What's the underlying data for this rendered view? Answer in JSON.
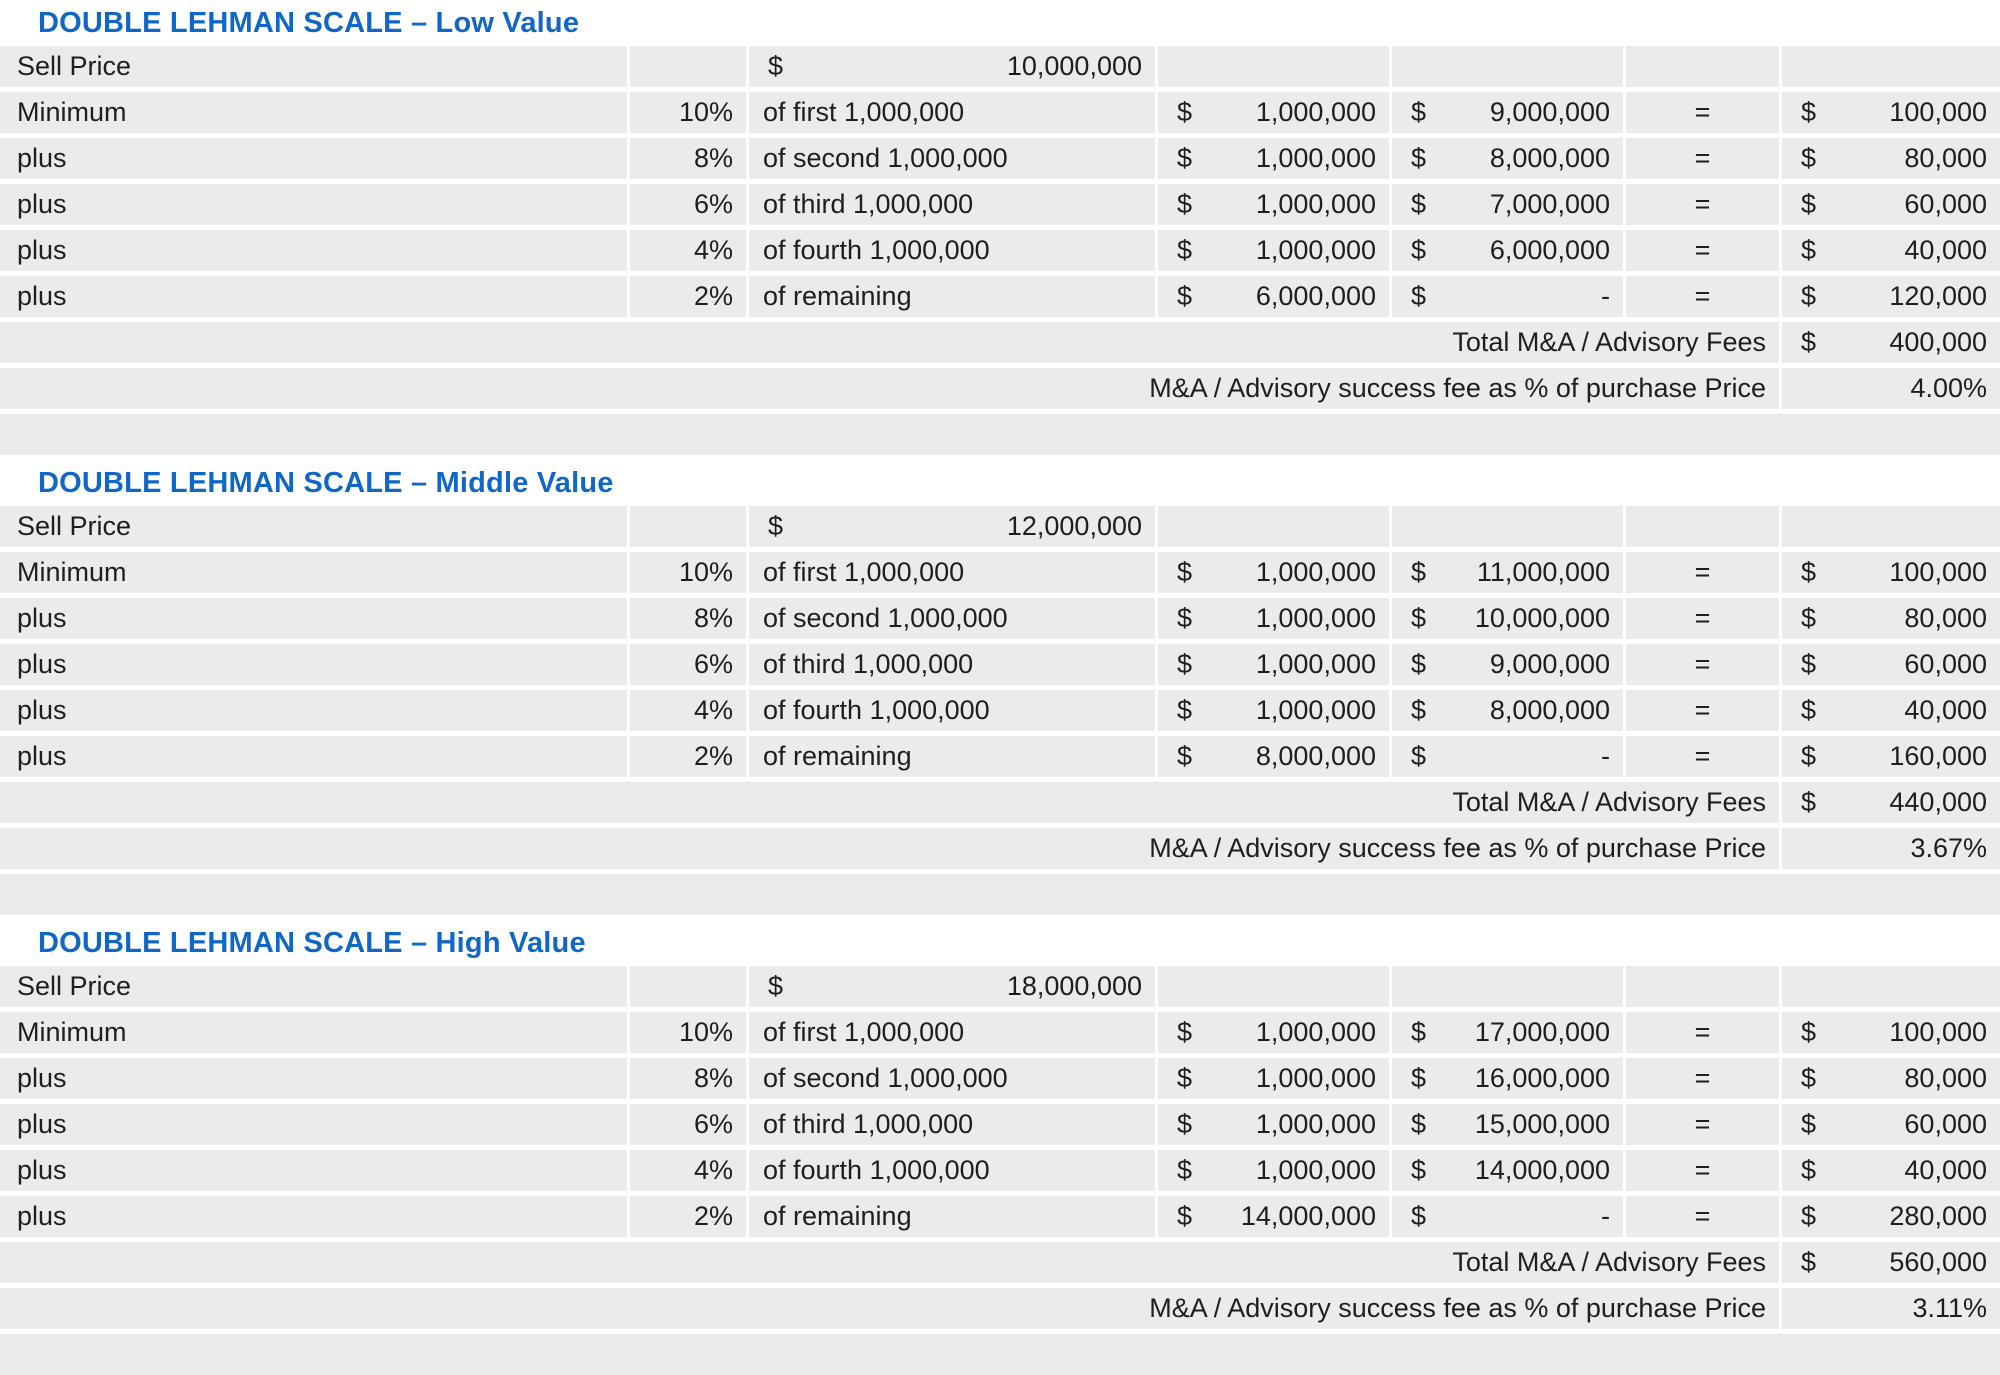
{
  "colors": {
    "title_accent": "#1167c5",
    "row_background": "#e9ebec",
    "text": "#1e1e1e"
  },
  "tables": [
    {
      "title": "DOUBLE LEHMAN SCALE – Low Value",
      "sell_price": {
        "label": "Sell Price",
        "currency": "$",
        "value": "10,000,000"
      },
      "rows": [
        {
          "label": "Minimum",
          "pct": "10%",
          "desc": "of first 1,000,000",
          "amount_currency": "$",
          "amount": "1,000,000",
          "remainder_currency": "$",
          "remainder": "9,000,000",
          "equals": "=",
          "fee_currency": "$",
          "fee": "100,000"
        },
        {
          "label": "plus",
          "pct": "8%",
          "desc": "of second 1,000,000",
          "amount_currency": "$",
          "amount": "1,000,000",
          "remainder_currency": "$",
          "remainder": "8,000,000",
          "equals": "=",
          "fee_currency": "$",
          "fee": "80,000"
        },
        {
          "label": "plus",
          "pct": "6%",
          "desc": "of third 1,000,000",
          "amount_currency": "$",
          "amount": "1,000,000",
          "remainder_currency": "$",
          "remainder": "7,000,000",
          "equals": "=",
          "fee_currency": "$",
          "fee": "60,000"
        },
        {
          "label": "plus",
          "pct": "4%",
          "desc": "of fourth 1,000,000",
          "amount_currency": "$",
          "amount": "1,000,000",
          "remainder_currency": "$",
          "remainder": "6,000,000",
          "equals": "=",
          "fee_currency": "$",
          "fee": "40,000"
        },
        {
          "label": "plus",
          "pct": "2%",
          "desc": "of remaining",
          "amount_currency": "$",
          "amount": "6,000,000",
          "remainder_currency": "$",
          "remainder": "-",
          "equals": "=",
          "fee_currency": "$",
          "fee": "120,000"
        }
      ],
      "total": {
        "label": "Total M&A / Advisory Fees",
        "currency": "$",
        "value": "400,000"
      },
      "success_fee": {
        "label": "M&A / Advisory success fee as % of purchase Price",
        "value": "4.00%"
      }
    },
    {
      "title": "DOUBLE LEHMAN SCALE – Middle Value",
      "sell_price": {
        "label": "Sell Price",
        "currency": "$",
        "value": "12,000,000"
      },
      "rows": [
        {
          "label": "Minimum",
          "pct": "10%",
          "desc": "of first 1,000,000",
          "amount_currency": "$",
          "amount": "1,000,000",
          "remainder_currency": "$",
          "remainder": "11,000,000",
          "equals": "=",
          "fee_currency": "$",
          "fee": "100,000"
        },
        {
          "label": "plus",
          "pct": "8%",
          "desc": "of second 1,000,000",
          "amount_currency": "$",
          "amount": "1,000,000",
          "remainder_currency": "$",
          "remainder": "10,000,000",
          "equals": "=",
          "fee_currency": "$",
          "fee": "80,000"
        },
        {
          "label": "plus",
          "pct": "6%",
          "desc": "of third 1,000,000",
          "amount_currency": "$",
          "amount": "1,000,000",
          "remainder_currency": "$",
          "remainder": "9,000,000",
          "equals": "=",
          "fee_currency": "$",
          "fee": "60,000"
        },
        {
          "label": "plus",
          "pct": "4%",
          "desc": "of fourth 1,000,000",
          "amount_currency": "$",
          "amount": "1,000,000",
          "remainder_currency": "$",
          "remainder": "8,000,000",
          "equals": "=",
          "fee_currency": "$",
          "fee": "40,000"
        },
        {
          "label": "plus",
          "pct": "2%",
          "desc": "of remaining",
          "amount_currency": "$",
          "amount": "8,000,000",
          "remainder_currency": "$",
          "remainder": "-",
          "equals": "=",
          "fee_currency": "$",
          "fee": "160,000"
        }
      ],
      "total": {
        "label": "Total M&A / Advisory Fees",
        "currency": "$",
        "value": "440,000"
      },
      "success_fee": {
        "label": "M&A / Advisory success fee as % of purchase Price",
        "value": "3.67%"
      }
    },
    {
      "title": "DOUBLE LEHMAN SCALE – High Value",
      "sell_price": {
        "label": "Sell Price",
        "currency": "$",
        "value": "18,000,000"
      },
      "rows": [
        {
          "label": "Minimum",
          "pct": "10%",
          "desc": "of first 1,000,000",
          "amount_currency": "$",
          "amount": "1,000,000",
          "remainder_currency": "$",
          "remainder": "17,000,000",
          "equals": "=",
          "fee_currency": "$",
          "fee": "100,000"
        },
        {
          "label": "plus",
          "pct": "8%",
          "desc": "of second 1,000,000",
          "amount_currency": "$",
          "amount": "1,000,000",
          "remainder_currency": "$",
          "remainder": "16,000,000",
          "equals": "=",
          "fee_currency": "$",
          "fee": "80,000"
        },
        {
          "label": "plus",
          "pct": "6%",
          "desc": "of third 1,000,000",
          "amount_currency": "$",
          "amount": "1,000,000",
          "remainder_currency": "$",
          "remainder": "15,000,000",
          "equals": "=",
          "fee_currency": "$",
          "fee": "60,000"
        },
        {
          "label": "plus",
          "pct": "4%",
          "desc": "of fourth 1,000,000",
          "amount_currency": "$",
          "amount": "1,000,000",
          "remainder_currency": "$",
          "remainder": "14,000,000",
          "equals": "=",
          "fee_currency": "$",
          "fee": "40,000"
        },
        {
          "label": "plus",
          "pct": "2%",
          "desc": "of remaining",
          "amount_currency": "$",
          "amount": "14,000,000",
          "remainder_currency": "$",
          "remainder": "-",
          "equals": "=",
          "fee_currency": "$",
          "fee": "280,000"
        }
      ],
      "total": {
        "label": "Total M&A / Advisory Fees",
        "currency": "$",
        "value": "560,000"
      },
      "success_fee": {
        "label": "M&A / Advisory success fee as % of purchase Price",
        "value": "3.11%"
      }
    }
  ]
}
